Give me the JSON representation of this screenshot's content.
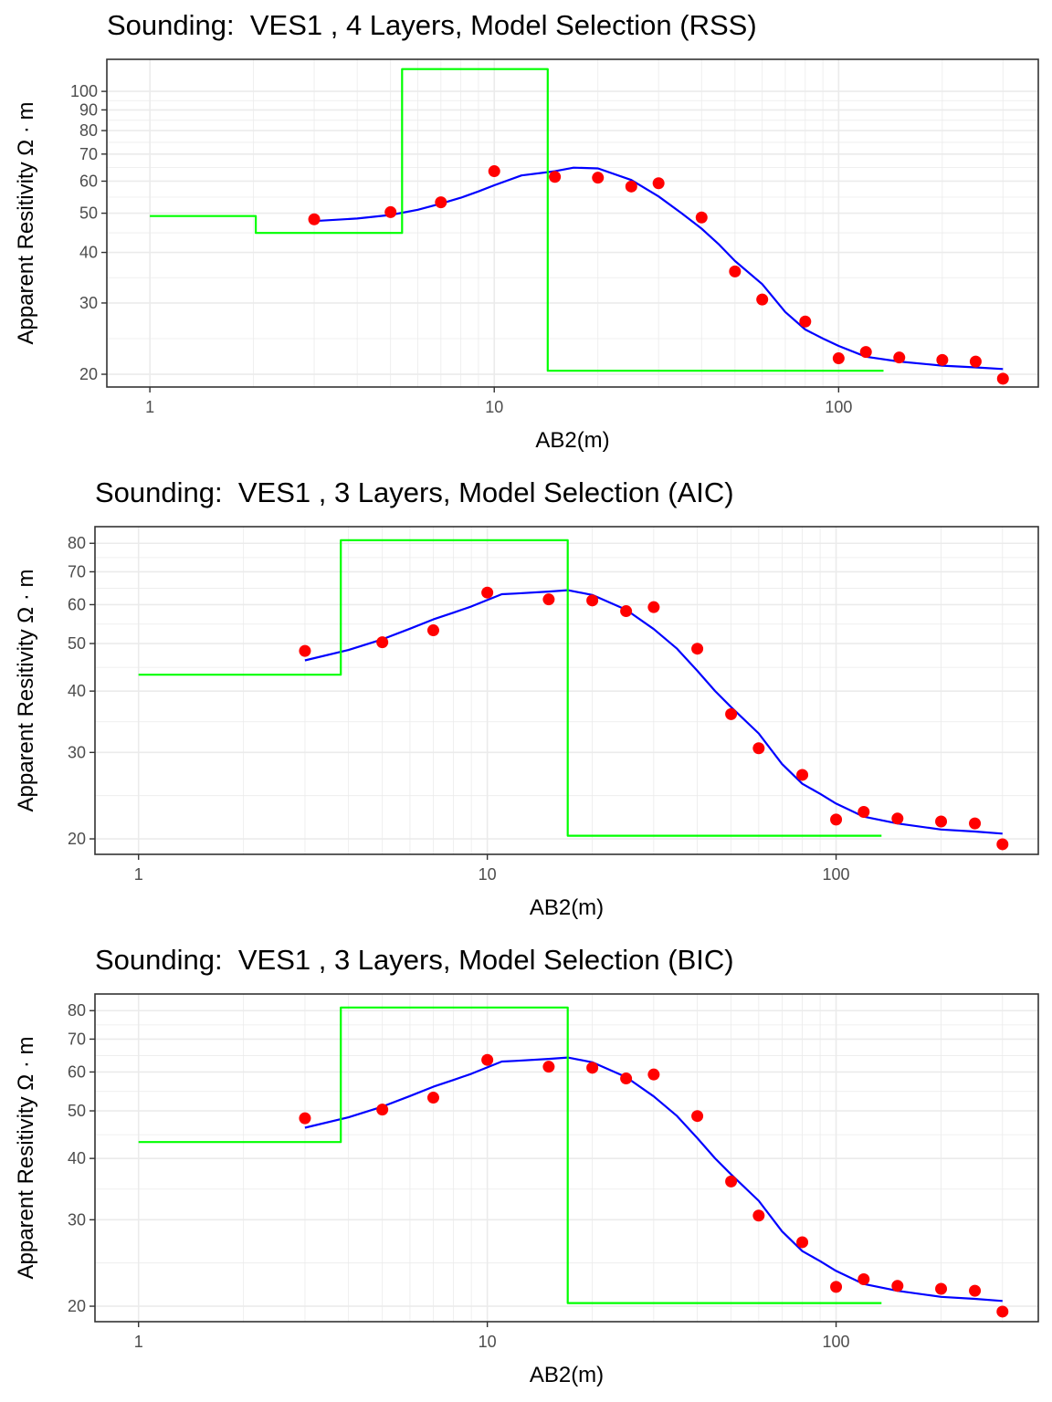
{
  "chart_data": [
    {
      "type": "line",
      "title": "Sounding:  VES1 , 4 Layers, Model Selection (RSS)",
      "xlabel": "AB2(m)",
      "ylabel": "Apparent Resitivity Ω · m",
      "x_scale": "log10",
      "y_scale": "log10",
      "xlim": [
        0.75,
        380
      ],
      "ylim": [
        18.6,
        120
      ],
      "x_ticks": [
        1,
        10,
        100
      ],
      "x_tick_labels": [
        "1",
        "10",
        "100"
      ],
      "y_ticks": [
        20,
        30,
        40,
        50,
        60,
        70,
        80,
        90,
        100
      ],
      "y_tick_labels": [
        "20",
        "30",
        "40",
        "50",
        "60",
        "70",
        "80",
        "90",
        "100"
      ],
      "grid": true,
      "legend": "none",
      "series": [
        {
          "kind": "points",
          "color": "#ff0000",
          "x": [
            3,
            5,
            7,
            10,
            15,
            20,
            25,
            30,
            40,
            50,
            60,
            80,
            100,
            120,
            150,
            200,
            250,
            300
          ],
          "y": [
            48.3,
            50.3,
            53.2,
            63.5,
            61.5,
            61.2,
            58.2,
            59.3,
            48.8,
            35.9,
            30.6,
            27.0,
            21.9,
            22.7,
            22.0,
            21.7,
            21.5,
            19.5
          ]
        },
        {
          "kind": "line",
          "color": "#0000ff",
          "x": [
            3,
            4,
            5,
            6,
            7,
            8,
            9,
            10,
            12,
            15,
            17,
            20,
            25,
            30,
            35,
            40,
            45,
            50,
            60,
            70,
            80,
            90,
            100,
            120,
            150,
            200,
            250,
            300
          ],
          "y": [
            47.8,
            48.5,
            49.5,
            51.0,
            52.8,
            54.6,
            56.6,
            58.6,
            62.0,
            63.5,
            64.8,
            64.5,
            60.4,
            55.0,
            50.0,
            45.8,
            41.8,
            38.1,
            33.4,
            28.5,
            25.8,
            24.5,
            23.5,
            22.1,
            21.5,
            21.0,
            20.8,
            20.6
          ]
        },
        {
          "kind": "step",
          "color": "#00ff00",
          "x": [
            1,
            2.03,
            2.03,
            5.4,
            5.4,
            14.3,
            14.3,
            135
          ],
          "y": [
            49.2,
            49.2,
            44.7,
            44.7,
            113.5,
            113.5,
            20.4,
            20.4
          ]
        }
      ]
    },
    {
      "type": "line",
      "title": "Sounding:  VES1 , 3 Layers, Model Selection (AIC)",
      "xlabel": "AB2(m)",
      "ylabel": "Apparent Resitivity Ω · m",
      "x_scale": "log10",
      "y_scale": "log10",
      "xlim": [
        0.75,
        380
      ],
      "ylim": [
        18.6,
        86.5
      ],
      "x_ticks": [
        1,
        10,
        100
      ],
      "x_tick_labels": [
        "1",
        "10",
        "100"
      ],
      "y_ticks": [
        20,
        30,
        40,
        50,
        60,
        70,
        80
      ],
      "y_tick_labels": [
        "20",
        "30",
        "40",
        "50",
        "60",
        "70",
        "80"
      ],
      "grid": true,
      "legend": "none",
      "series": [
        {
          "kind": "points",
          "color": "#ff0000",
          "x": [
            3,
            5,
            7,
            10,
            15,
            20,
            25,
            30,
            40,
            50,
            60,
            80,
            100,
            120,
            150,
            200,
            250,
            300
          ],
          "y": [
            48.3,
            50.3,
            53.2,
            63.5,
            61.5,
            61.2,
            58.2,
            59.3,
            48.8,
            35.9,
            30.6,
            27.0,
            21.9,
            22.7,
            22.0,
            21.7,
            21.5,
            19.5
          ]
        },
        {
          "kind": "line",
          "color": "#0000ff",
          "x": [
            3,
            4,
            5,
            6,
            7,
            8,
            9,
            10,
            11,
            12,
            15,
            17,
            20,
            25,
            30,
            35,
            40,
            45,
            50,
            60,
            70,
            80,
            90,
            100,
            120,
            150,
            200,
            250,
            300
          ],
          "y": [
            46.2,
            48.5,
            51.0,
            53.6,
            56.0,
            57.8,
            59.5,
            61.3,
            63.0,
            63.2,
            63.8,
            64.2,
            62.8,
            58.6,
            53.5,
            48.8,
            44.0,
            40.0,
            37.1,
            32.8,
            28.4,
            25.9,
            24.7,
            23.6,
            22.2,
            21.5,
            20.9,
            20.7,
            20.5
          ]
        },
        {
          "kind": "step",
          "color": "#00ff00",
          "x": [
            1,
            3.8,
            3.8,
            17,
            17,
            135
          ],
          "y": [
            43.2,
            43.2,
            81.2,
            81.2,
            20.3,
            20.3
          ]
        }
      ]
    },
    {
      "type": "line",
      "title": "Sounding:  VES1 , 3 Layers, Model Selection (BIC)",
      "xlabel": "AB2(m)",
      "ylabel": "Apparent Resitivity Ω · m",
      "x_scale": "log10",
      "y_scale": "log10",
      "xlim": [
        0.75,
        380
      ],
      "ylim": [
        18.6,
        86.5
      ],
      "x_ticks": [
        1,
        10,
        100
      ],
      "x_tick_labels": [
        "1",
        "10",
        "100"
      ],
      "y_ticks": [
        20,
        30,
        40,
        50,
        60,
        70,
        80
      ],
      "y_tick_labels": [
        "20",
        "30",
        "40",
        "50",
        "60",
        "70",
        "80"
      ],
      "grid": true,
      "legend": "none",
      "series": [
        {
          "kind": "points",
          "color": "#ff0000",
          "x": [
            3,
            5,
            7,
            10,
            15,
            20,
            25,
            30,
            40,
            50,
            60,
            80,
            100,
            120,
            150,
            200,
            250,
            300
          ],
          "y": [
            48.3,
            50.3,
            53.2,
            63.5,
            61.5,
            61.2,
            58.2,
            59.3,
            48.8,
            35.9,
            30.6,
            27.0,
            21.9,
            22.7,
            22.0,
            21.7,
            21.5,
            19.5
          ]
        },
        {
          "kind": "line",
          "color": "#0000ff",
          "x": [
            3,
            4,
            5,
            6,
            7,
            8,
            9,
            10,
            11,
            12,
            15,
            17,
            20,
            25,
            30,
            35,
            40,
            45,
            50,
            60,
            70,
            80,
            90,
            100,
            120,
            150,
            200,
            250,
            300
          ],
          "y": [
            46.2,
            48.5,
            51.0,
            53.6,
            56.0,
            57.8,
            59.5,
            61.3,
            63.0,
            63.2,
            63.8,
            64.2,
            62.8,
            58.6,
            53.5,
            48.8,
            44.0,
            40.0,
            37.1,
            32.8,
            28.4,
            25.9,
            24.7,
            23.6,
            22.2,
            21.5,
            20.9,
            20.7,
            20.5
          ]
        },
        {
          "kind": "step",
          "color": "#00ff00",
          "x": [
            1,
            3.8,
            3.8,
            17,
            17,
            135
          ],
          "y": [
            43.2,
            43.2,
            81.2,
            81.2,
            20.3,
            20.3
          ]
        }
      ]
    }
  ]
}
